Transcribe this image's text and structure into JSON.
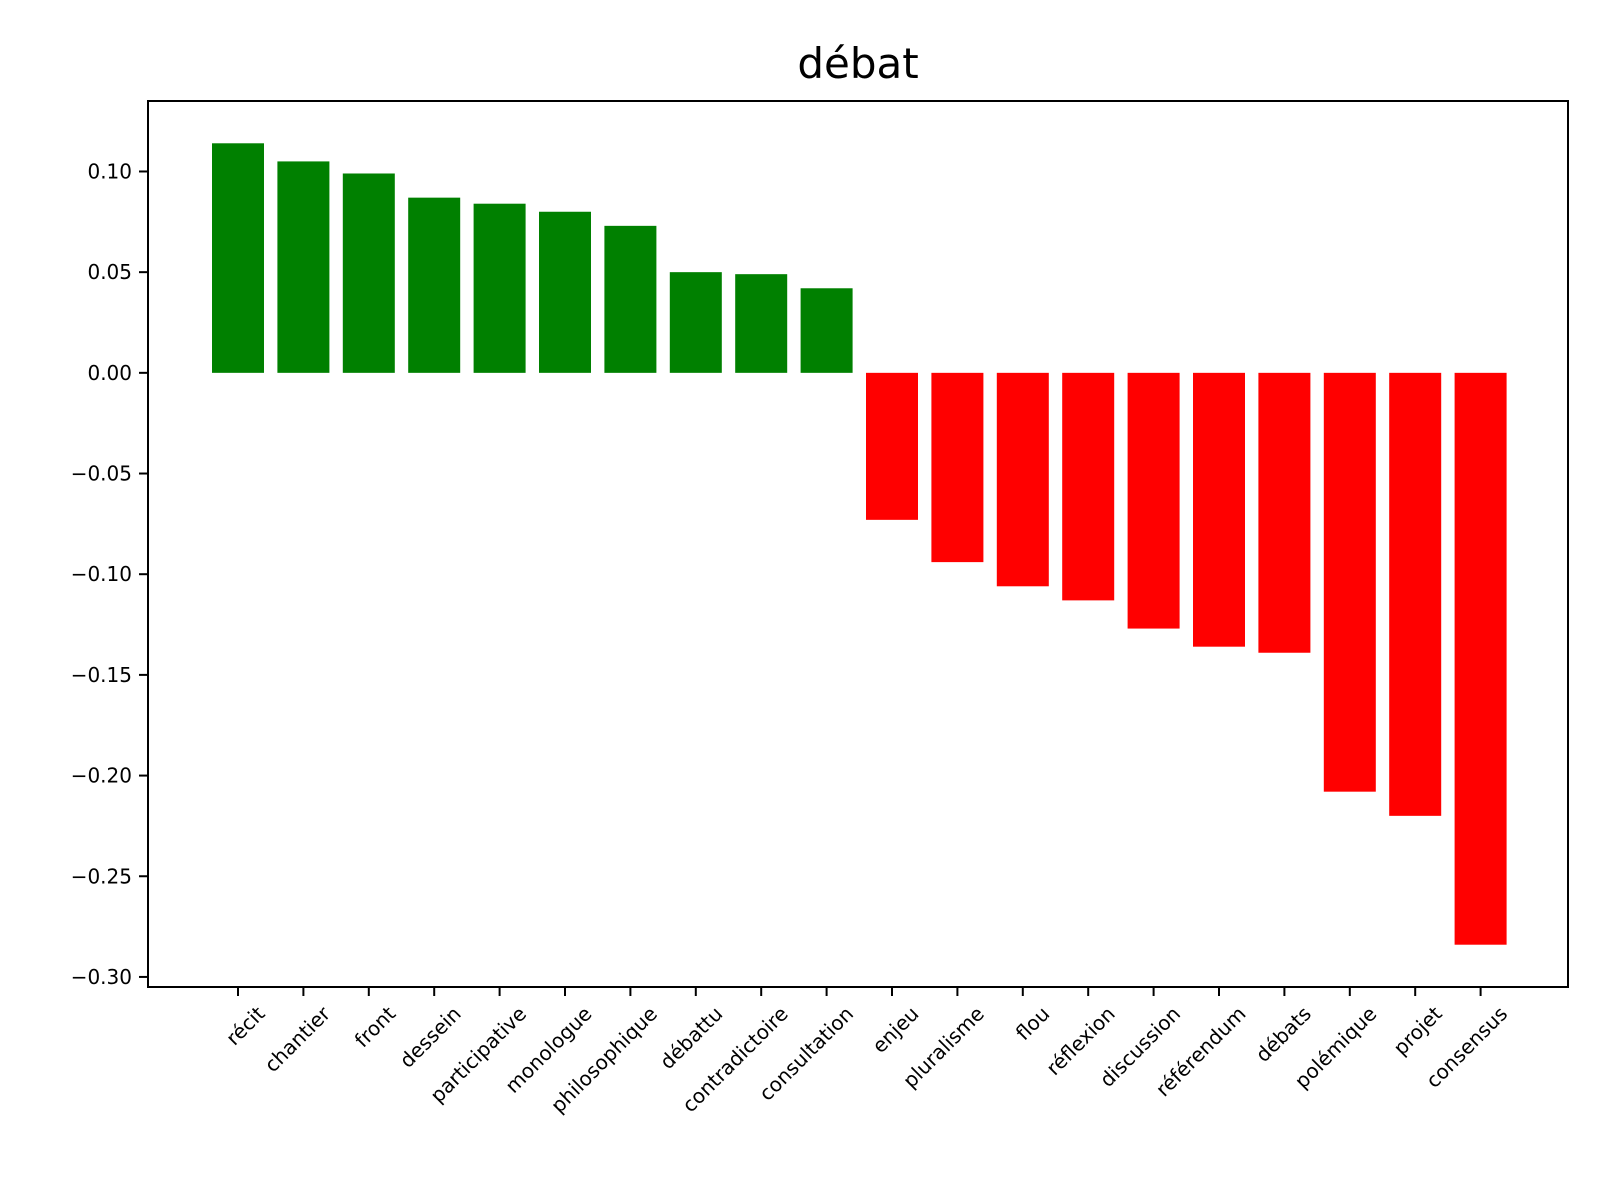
{
  "chart_data": {
    "type": "bar",
    "title": "débat",
    "xlabel": "",
    "ylabel": "",
    "ylim": [
      -0.305,
      0.135
    ],
    "yticks": [
      0.1,
      0.05,
      0.0,
      -0.05,
      -0.1,
      -0.15,
      -0.2,
      -0.25,
      -0.3
    ],
    "ytick_labels": [
      "0.10",
      "0.05",
      "0.00",
      "−0.05",
      "−0.10",
      "−0.15",
      "−0.20",
      "−0.25",
      "−0.30"
    ],
    "grid": false,
    "legend": "none",
    "colors": {
      "positive": "#008000",
      "negative": "#ff0000"
    },
    "categories": [
      "récit",
      "chantier",
      "front",
      "dessein",
      "participative",
      "monologue",
      "philosophique",
      "débattu",
      "contradictoire",
      "consultation",
      "enjeu",
      "pluralisme",
      "flou",
      "réflexion",
      "discussion",
      "référendum",
      "débats",
      "polémique",
      "projet",
      "consensus"
    ],
    "values": [
      0.114,
      0.105,
      0.099,
      0.087,
      0.084,
      0.08,
      0.073,
      0.05,
      0.049,
      0.042,
      -0.073,
      -0.094,
      -0.106,
      -0.113,
      -0.127,
      -0.136,
      -0.139,
      -0.208,
      -0.22,
      -0.284
    ]
  }
}
